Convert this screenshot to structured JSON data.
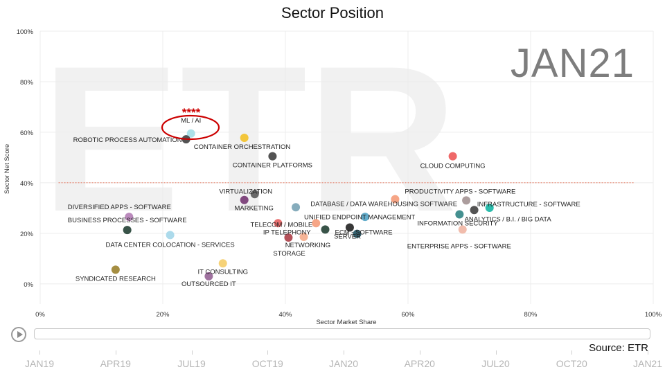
{
  "title": "Sector Position",
  "period": "JAN21",
  "source": "Source: ETR",
  "colors": {
    "reference_line": "#e05030",
    "highlight": "#cc0000"
  },
  "timeline": {
    "labels": [
      "JAN19",
      "APR19",
      "JUL19",
      "OCT19",
      "JAN20",
      "APR20",
      "JUL20",
      "OCT20",
      "JAN21"
    ],
    "play_icon": "play-icon"
  },
  "highlight": {
    "label": "ML / AI",
    "marker": "****"
  },
  "chart_data": {
    "type": "scatter",
    "title": "Sector Position",
    "xlabel": "Sector Market Share",
    "ylabel": "Sector Net Score",
    "xlim": [
      0,
      100
    ],
    "ylim": [
      -8,
      100
    ],
    "xticks": [
      0,
      20,
      40,
      60,
      80,
      100
    ],
    "yticks": [
      0,
      20,
      40,
      60,
      80,
      100
    ],
    "xtick_labels": [
      "0%",
      "20%",
      "40%",
      "60%",
      "80%",
      "100%"
    ],
    "ytick_labels": [
      "0%",
      "20%",
      "40%",
      "60%",
      "80%",
      "100%"
    ],
    "reference_line_y": 40,
    "points": [
      {
        "label": "ML / AI",
        "x": 24.6,
        "y": 59.5,
        "color": "#a8dfe8"
      },
      {
        "label": "ROBOTIC PROCESS AUTOMATION",
        "x": 23.8,
        "y": 57.2,
        "color": "#4a4a4a"
      },
      {
        "label": "CONTAINER ORCHESTRATION",
        "x": 33.3,
        "y": 57.8,
        "color": "#f2c330"
      },
      {
        "label": "CONTAINER PLATFORMS",
        "x": 37.9,
        "y": 50.5,
        "color": "#4a4a4a"
      },
      {
        "label": "CLOUD COMPUTING",
        "x": 67.3,
        "y": 50.5,
        "color": "#ee6060"
      },
      {
        "label": "VIRTUALIZATION",
        "x": 35.0,
        "y": 35.5,
        "color": "#606060"
      },
      {
        "label": "MARKETING",
        "x": 33.3,
        "y": 33.2,
        "color": "#7a3f78"
      },
      {
        "label": "PRODUCTIVITY APPS - SOFTWARE",
        "x": 57.9,
        "y": 33.5,
        "color": "#f5a080"
      },
      {
        "label": "DIVERSIFIED APPS - SOFTWARE",
        "x": 14.5,
        "y": 26.5,
        "color": "#b684b8"
      },
      {
        "label": "BUSINESS PROCESSES - SOFTWARE",
        "x": 14.2,
        "y": 21.3,
        "color": "#2d4a3e"
      },
      {
        "label": "DATA CENTER COLOCATION - SERVICES",
        "x": 21.2,
        "y": 19.3,
        "color": "#a8d8ea"
      },
      {
        "label": "DATABASE / DATA WAREHOUSING SOFTWARE",
        "x": 69.5,
        "y": 33.0,
        "color": "#a89898"
      },
      {
        "label": "INFRASTRUCTURE - SOFTWARE",
        "x": 73.3,
        "y": 30.1,
        "color": "#20b8a8"
      },
      {
        "label": "ANALYTICS / B.I. / BIG DATA",
        "x": 70.8,
        "y": 29.2,
        "color": "#4a4a4a"
      },
      {
        "label": "UNIFIED ENDPOINT MANAGEMENT",
        "x": 41.7,
        "y": 30.3,
        "color": "#7fa8b8"
      },
      {
        "label": "INFORMATION SECURITY",
        "x": 68.4,
        "y": 27.5,
        "color": "#3a8a8a"
      },
      {
        "label": "ENTERPRISE APPS - SOFTWARE",
        "x": 68.9,
        "y": 21.5,
        "color": "#f0b8a8"
      },
      {
        "label": "TELECOM / MOBILE",
        "x": 38.8,
        "y": 24.0,
        "color": "#e86868"
      },
      {
        "label": "IP TELEPHONY",
        "x": 45.0,
        "y": 24.0,
        "color": "#f5a080"
      },
      {
        "label": "ECM - SOFTWARE",
        "x": 46.5,
        "y": 21.5,
        "color": "#2d4a3e"
      },
      {
        "label": "SERVER",
        "x": 51.7,
        "y": 19.8,
        "color": "#2a5a68"
      },
      {
        "label": "",
        "x": 53.0,
        "y": 26.5,
        "color": "#5aa8c8"
      },
      {
        "label": "",
        "x": 50.5,
        "y": 22.3,
        "color": "#2d2d2d"
      },
      {
        "label": "NETWORKING",
        "x": 40.5,
        "y": 18.3,
        "color": "#b04850"
      },
      {
        "label": "STORAGE",
        "x": 43.0,
        "y": 18.6,
        "color": "#f5b090"
      },
      {
        "label": "IT CONSULTING",
        "x": 29.8,
        "y": 8.1,
        "color": "#f5d070"
      },
      {
        "label": "OUTSOURCED IT",
        "x": 27.5,
        "y": 3.0,
        "color": "#9a6a9a"
      },
      {
        "label": "SYNDICATED RESEARCH",
        "x": 12.3,
        "y": 5.6,
        "color": "#a08838"
      }
    ]
  }
}
